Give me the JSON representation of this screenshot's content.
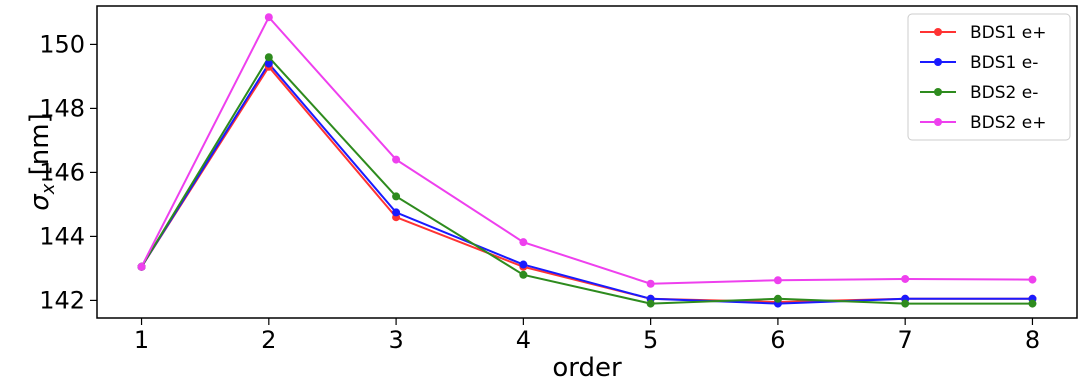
{
  "chart_data": {
    "type": "line",
    "xlabel": "order",
    "ylabel": "σx [nm]",
    "ylabel_main": "σ",
    "ylabel_sub": "x",
    "ylabel_unit": " [nm]",
    "x": [
      1,
      2,
      3,
      4,
      5,
      6,
      7,
      8
    ],
    "xlim": [
      0.65,
      8.35
    ],
    "ylim": [
      141.45,
      151.2
    ],
    "xticks": [
      "1",
      "2",
      "3",
      "4",
      "5",
      "6",
      "7",
      "8"
    ],
    "yticks": [
      "142",
      "144",
      "146",
      "148",
      "150"
    ],
    "grid": false,
    "legend_position": "top-right",
    "series": [
      {
        "name": "BDS1 e+",
        "color": "#ff3333",
        "values": [
          143.05,
          149.3,
          144.6,
          143.05,
          142.05,
          141.95,
          142.05,
          142.05
        ]
      },
      {
        "name": "BDS1 e-",
        "color": "#1a1aff",
        "values": [
          143.05,
          149.4,
          144.75,
          143.12,
          142.05,
          141.9,
          142.05,
          142.05
        ]
      },
      {
        "name": "BDS2 e-",
        "color": "#2e8b1e",
        "values": [
          143.05,
          149.6,
          145.25,
          142.8,
          141.9,
          142.05,
          141.9,
          141.9
        ]
      },
      {
        "name": "BDS2 e+",
        "color": "#ee40ee",
        "values": [
          143.05,
          150.85,
          146.4,
          143.82,
          142.52,
          142.63,
          142.67,
          142.65
        ]
      }
    ]
  }
}
